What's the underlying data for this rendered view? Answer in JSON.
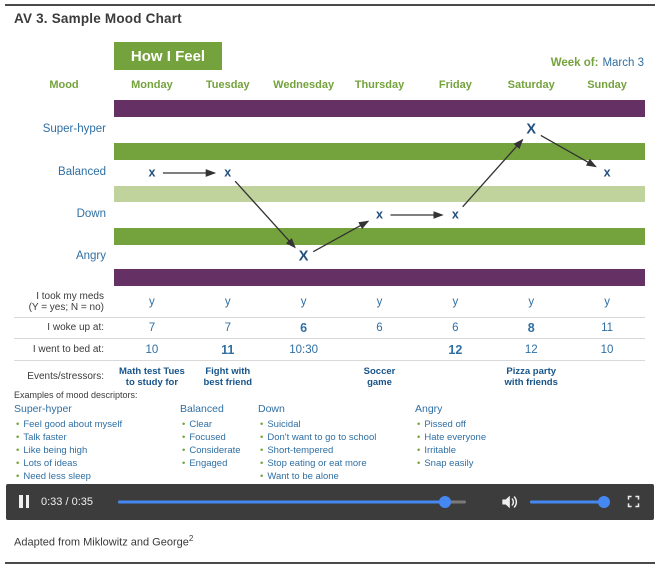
{
  "page": {
    "title": "AV 3. Sample Mood Chart",
    "footer_text": "Adapted from Miklowitz and George",
    "footer_sup": "2"
  },
  "chart": {
    "heading": "How I Feel",
    "week_label": "Week of:",
    "week_value": "March 3",
    "mood_col_label": "Mood",
    "days": [
      "Monday",
      "Tuesday",
      "Wednesday",
      "Thursday",
      "Friday",
      "Saturday",
      "Sunday"
    ],
    "moods": [
      "Super-hyper",
      "Balanced",
      "Down",
      "Angry"
    ],
    "row_labels": {
      "meds_line1": "I took my meds",
      "meds_line2": "(Y = yes; N = no)",
      "woke": "I woke up at:",
      "bed": "I went to bed at:",
      "events": "Events/stressors:"
    }
  },
  "chart_data": {
    "type": "line",
    "title": "How I Feel",
    "week_of": "March 3",
    "x": [
      "Monday",
      "Tuesday",
      "Wednesday",
      "Thursday",
      "Friday",
      "Saturday",
      "Sunday"
    ],
    "y_levels_top_to_bottom": [
      "Super-hyper",
      "Balanced",
      "Down",
      "Angry"
    ],
    "mood_by_day": [
      "Balanced",
      "Balanced",
      "Angry",
      "Down",
      "Down",
      "Super-hyper",
      "Balanced"
    ],
    "emphasized_days": [
      "Wednesday",
      "Saturday"
    ],
    "mark_glyph": "x",
    "mark_glyph_emphasized": "X",
    "took_meds": [
      "y",
      "y",
      "y",
      "y",
      "y",
      "y",
      "y"
    ],
    "woke_up_at": [
      "7",
      "7",
      "6",
      "6",
      "6",
      "8",
      "11"
    ],
    "woke_up_bold_indices": [
      2,
      5
    ],
    "went_to_bed_at": [
      "10",
      "11",
      "10:30",
      "",
      "12",
      "12",
      "10"
    ],
    "went_to_bed_bold_indices": [
      1,
      4
    ],
    "events_stressors": [
      "Math test Tues\nto study for",
      "Fight with\nbest friend",
      "",
      "Soccer\ngame",
      "",
      "Pizza party\nwith friends",
      ""
    ]
  },
  "descriptors": {
    "label": "Examples of mood descriptors:",
    "bullet": "•",
    "groups": [
      {
        "title": "Super-hyper",
        "items": [
          "Feel good about myself",
          "Talk faster",
          "Like being high",
          "Lots of ideas",
          "Need less sleep"
        ]
      },
      {
        "title": "Balanced",
        "items": [
          "Clear",
          "Focused",
          "Considerate",
          "Engaged"
        ]
      },
      {
        "title": "Down",
        "items": [
          "Suicidal",
          "Don't want to go to school",
          "Short-tempered",
          "Stop eating or eat more",
          "Want to be alone"
        ]
      },
      {
        "title": "Angry",
        "items": [
          "Pissed off",
          "Hate everyone",
          "Irritable",
          "Snap easily"
        ]
      }
    ]
  },
  "player": {
    "time_display": "0:33 / 0:35",
    "progress_percent": 94,
    "volume_percent": 100,
    "icons": [
      "pause-icon",
      "speaker-icon",
      "fullscreen-icon"
    ]
  },
  "colors": {
    "green": "#74a23c",
    "light_green": "#c0d39d",
    "purple": "#653063",
    "blue": "#2f6fa3",
    "navy": "#24507e",
    "event_blue": "#17548a",
    "accent": "#4688f1",
    "player_bg": "#3c3c3c",
    "arrow": "#333333"
  }
}
